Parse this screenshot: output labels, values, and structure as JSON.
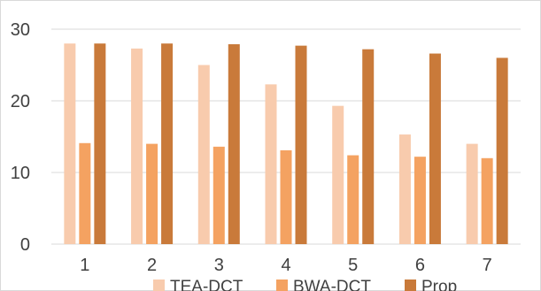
{
  "chart_data": {
    "type": "bar",
    "title": "",
    "xlabel": "",
    "ylabel": "",
    "categories": [
      "1",
      "2",
      "3",
      "4",
      "5",
      "6",
      "7"
    ],
    "ylim": [
      0,
      30
    ],
    "yticks": [
      0,
      10,
      20,
      30
    ],
    "grid": true,
    "legend_position": "bottom",
    "series": [
      {
        "name": "TEA-DCT",
        "color": "#f8cbad",
        "values": [
          28.0,
          27.3,
          25.0,
          22.3,
          19.3,
          15.3,
          14.0
        ]
      },
      {
        "name": "BWA-DCT",
        "color": "#f4a261",
        "values": [
          14.1,
          14.0,
          13.6,
          13.1,
          12.4,
          12.2,
          12.0
        ]
      },
      {
        "name": "Prop",
        "color": "#c97a3a",
        "values": [
          28.0,
          28.0,
          27.9,
          27.7,
          27.2,
          26.6,
          26.0
        ]
      }
    ]
  }
}
